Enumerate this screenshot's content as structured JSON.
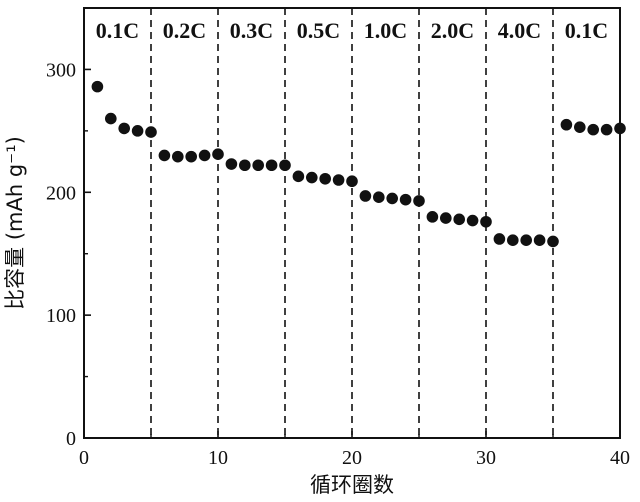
{
  "chart_data": {
    "type": "scatter",
    "xlabel": "循环圈数",
    "ylabel": "比容量 (mAh g⁻¹)",
    "xlim": [
      0,
      40
    ],
    "ylim": [
      0,
      350
    ],
    "xticks": [
      0,
      10,
      20,
      30,
      40
    ],
    "yticks": [
      0,
      100,
      200,
      300
    ],
    "x_tick_labels": [
      "0",
      "10",
      "20",
      "30",
      "40"
    ],
    "y_tick_labels": [
      "0",
      "100",
      "200",
      "300"
    ],
    "grid": false,
    "legend": "none",
    "marker_color": "#111111",
    "separators_x": [
      5,
      10,
      15,
      20,
      25,
      30,
      35
    ],
    "rate_segments": [
      {
        "label": "0.1C",
        "from": 0,
        "to": 5
      },
      {
        "label": "0.2C",
        "from": 5,
        "to": 10
      },
      {
        "label": "0.3C",
        "from": 10,
        "to": 15
      },
      {
        "label": "0.5C",
        "from": 15,
        "to": 20
      },
      {
        "label": "1.0C",
        "from": 20,
        "to": 25
      },
      {
        "label": "2.0C",
        "from": 25,
        "to": 30
      },
      {
        "label": "4.0C",
        "from": 30,
        "to": 35
      },
      {
        "label": "0.1C",
        "from": 35,
        "to": 40
      }
    ],
    "x": [
      1,
      2,
      3,
      4,
      5,
      6,
      7,
      8,
      9,
      10,
      11,
      12,
      13,
      14,
      15,
      16,
      17,
      18,
      19,
      20,
      21,
      22,
      23,
      24,
      25,
      26,
      27,
      28,
      29,
      30,
      31,
      32,
      33,
      34,
      35,
      36,
      37,
      38,
      39,
      40
    ],
    "y": [
      286,
      260,
      252,
      250,
      249,
      230,
      229,
      229,
      230,
      231,
      223,
      222,
      222,
      222,
      222,
      213,
      212,
      211,
      210,
      209,
      197,
      196,
      195,
      194,
      193,
      180,
      179,
      178,
      177,
      176,
      162,
      161,
      161,
      161,
      160,
      255,
      253,
      251,
      251,
      252
    ]
  }
}
